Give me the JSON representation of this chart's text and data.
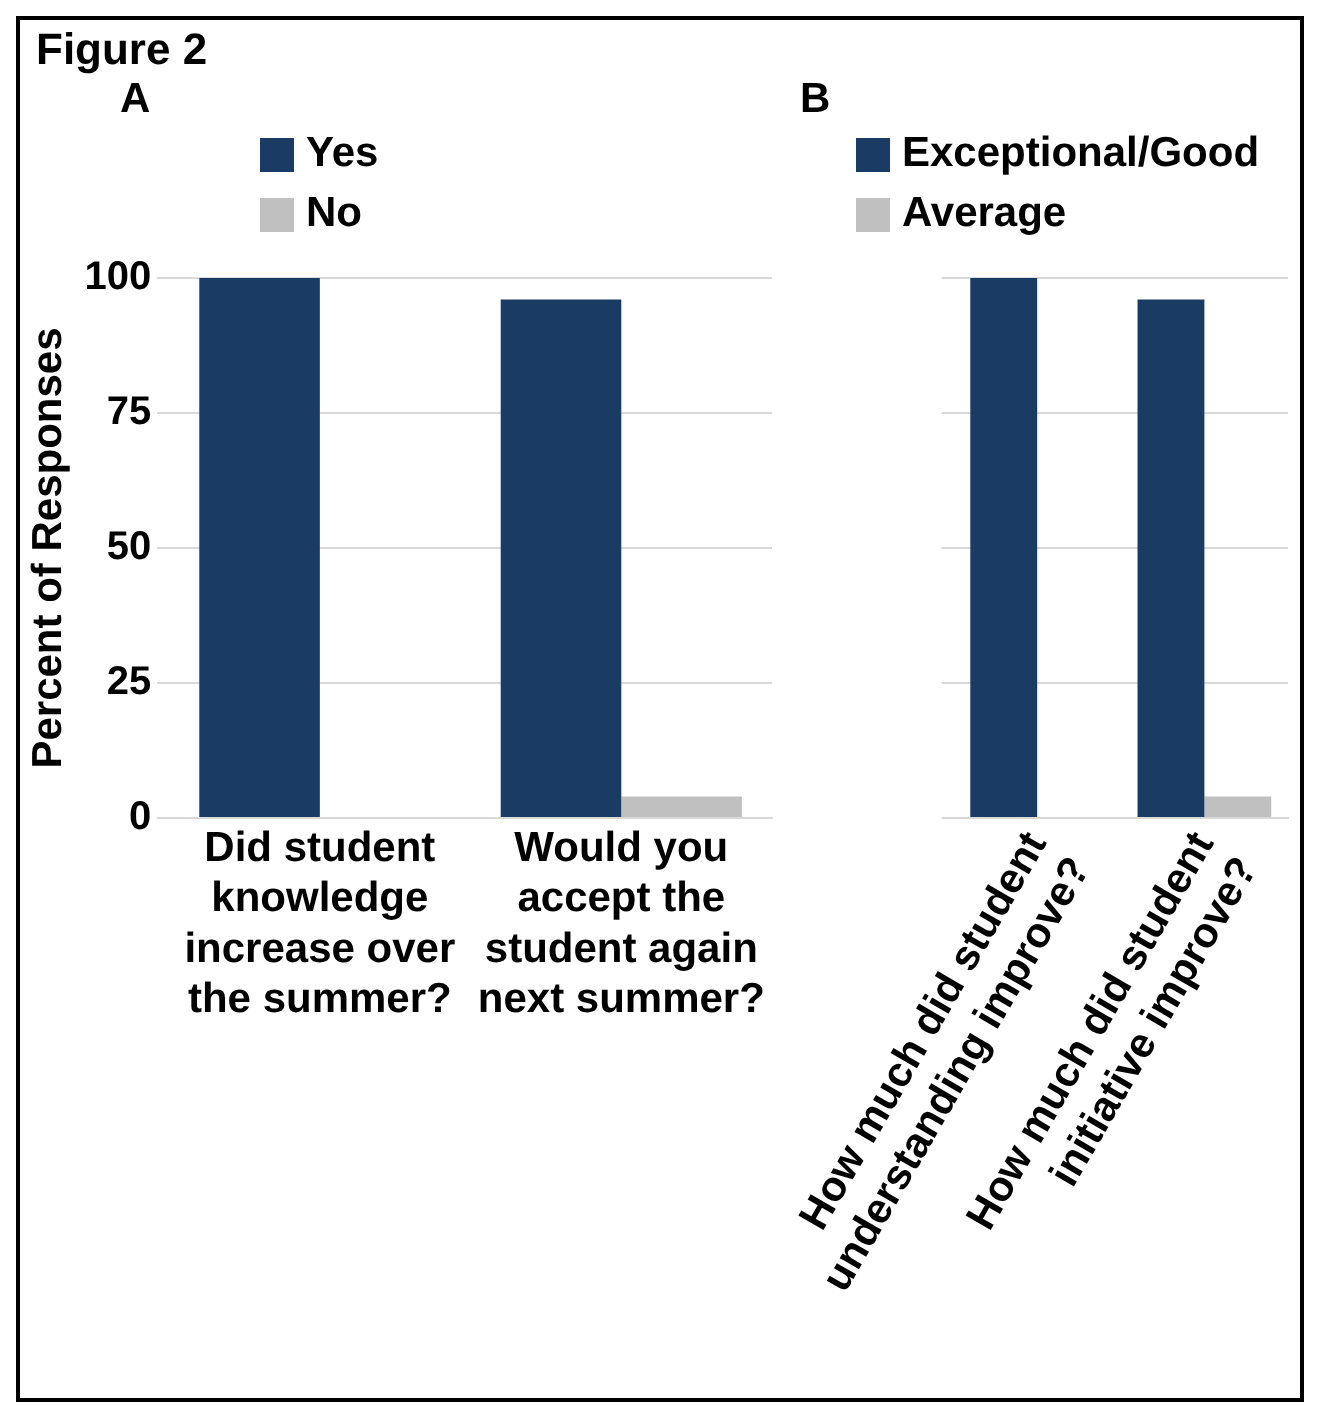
{
  "chart_data": [
    {
      "type": "bar",
      "title": "A",
      "annotations": [
        "Figure 2"
      ],
      "ylabel": "Percent of Responses",
      "categories": [
        "Did student knowledge increase over the summer?",
        "Would you accept the student again next summer?"
      ],
      "series": [
        {
          "name": "Yes",
          "color": "#1a3c64",
          "values": [
            100,
            96
          ]
        },
        {
          "name": "No",
          "color": "#c0c0c0",
          "values": [
            0,
            4
          ]
        }
      ],
      "ylim": [
        0,
        100
      ],
      "yticks": [
        0,
        25,
        50,
        75,
        100
      ],
      "grid": "y",
      "legend": "top left"
    },
    {
      "type": "bar",
      "title": "B",
      "categories": [
        "How much did student understanding improve?",
        "How much did student initiative improve?"
      ],
      "series": [
        {
          "name": "Exceptional/Good",
          "color": "#1a3c64",
          "values": [
            100,
            96
          ]
        },
        {
          "name": "Average",
          "color": "#c0c0c0",
          "values": [
            0,
            4
          ]
        }
      ],
      "ylim": [
        0,
        100
      ],
      "yticks": [
        0,
        25,
        50,
        75,
        100
      ],
      "grid": "y",
      "legend": "top left",
      "tick_labels": "x"
    }
  ]
}
